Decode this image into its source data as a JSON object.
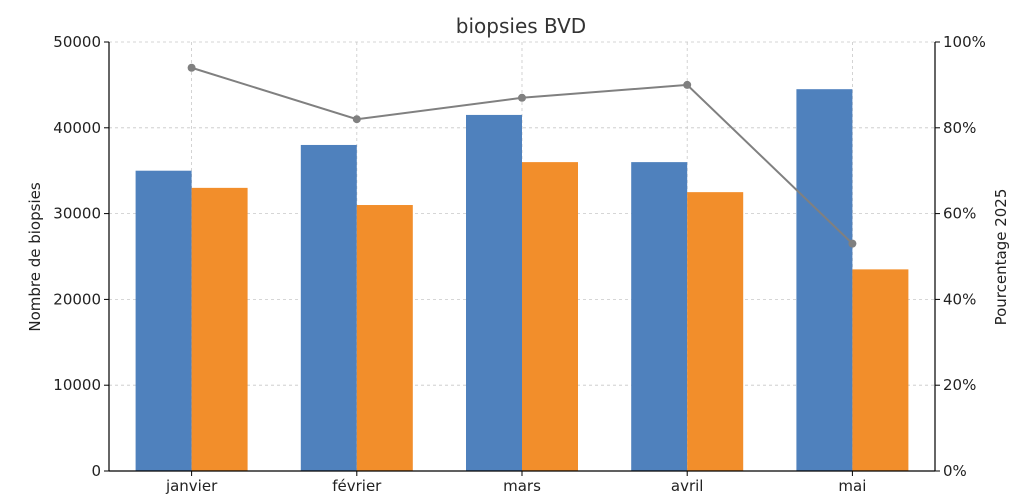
{
  "chart_data": {
    "type": "bar",
    "title": "biopsies BVD",
    "categories": [
      "janvier",
      "février",
      "mars",
      "avril",
      "mai"
    ],
    "series": [
      {
        "values": [
          35000,
          38000,
          41500,
          36000,
          44500
        ],
        "color": "#4f81bd"
      },
      {
        "values": [
          33000,
          31000,
          36000,
          32500,
          23500
        ],
        "color": "#f28e2b"
      }
    ],
    "line_series": {
      "values": [
        94,
        82,
        87,
        90,
        53
      ],
      "color": "#808080"
    },
    "ylabel": "Nombre de biopsies",
    "ylim": [
      0,
      50000
    ],
    "yticks": [
      "0",
      "10000",
      "20000",
      "30000",
      "40000",
      "50000"
    ],
    "y2label": "Pourcentage 2025",
    "y2lim": [
      0,
      100
    ],
    "y2ticks": [
      "0%",
      "20%",
      "40%",
      "60%",
      "80%",
      "100%"
    ],
    "grid": true,
    "grid_style": "dashed"
  }
}
